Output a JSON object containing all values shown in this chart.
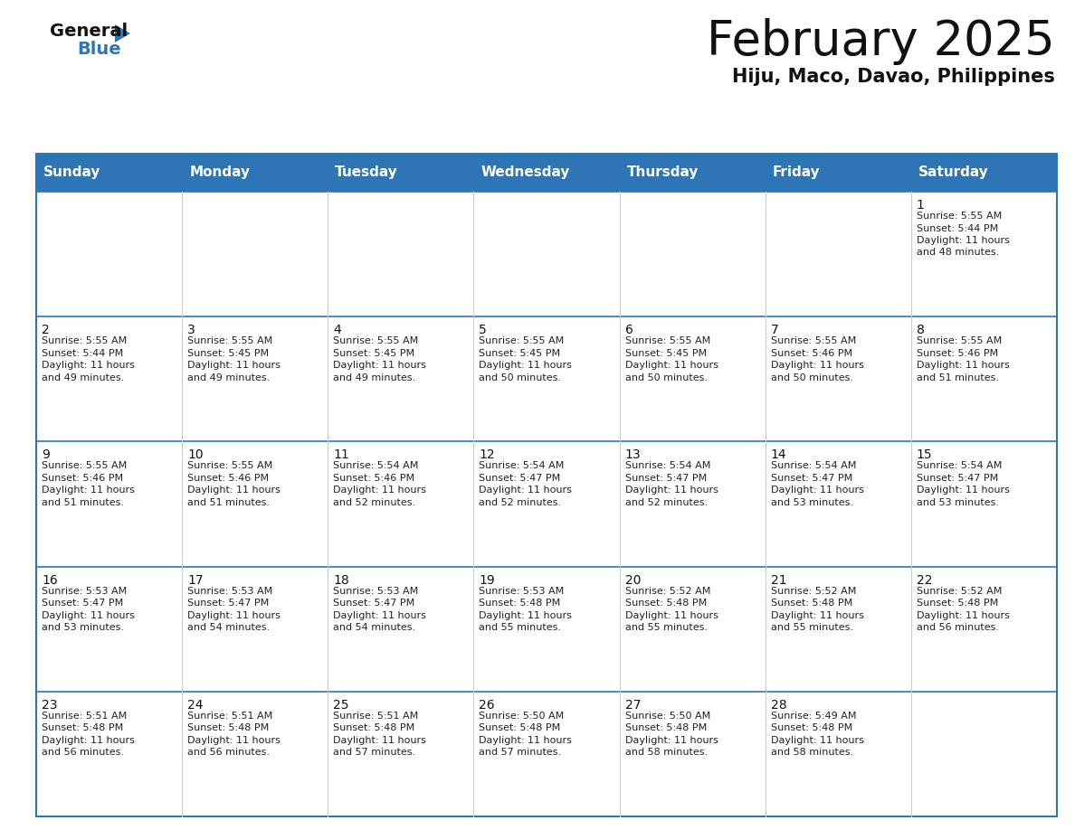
{
  "title": "February 2025",
  "subtitle": "Hiju, Maco, Davao, Philippines",
  "header_color": "#2E75B6",
  "header_text_color": "#FFFFFF",
  "border_color": "#2E75B6",
  "cell_bg_color": "#FFFFFF",
  "day_headers": [
    "Sunday",
    "Monday",
    "Tuesday",
    "Wednesday",
    "Thursday",
    "Friday",
    "Saturday"
  ],
  "days": [
    {
      "day": 1,
      "col": 6,
      "row": 0,
      "sunrise": "5:55 AM",
      "sunset": "5:44 PM",
      "daylight_hours": 11,
      "daylight_minutes": 48
    },
    {
      "day": 2,
      "col": 0,
      "row": 1,
      "sunrise": "5:55 AM",
      "sunset": "5:44 PM",
      "daylight_hours": 11,
      "daylight_minutes": 49
    },
    {
      "day": 3,
      "col": 1,
      "row": 1,
      "sunrise": "5:55 AM",
      "sunset": "5:45 PM",
      "daylight_hours": 11,
      "daylight_minutes": 49
    },
    {
      "day": 4,
      "col": 2,
      "row": 1,
      "sunrise": "5:55 AM",
      "sunset": "5:45 PM",
      "daylight_hours": 11,
      "daylight_minutes": 49
    },
    {
      "day": 5,
      "col": 3,
      "row": 1,
      "sunrise": "5:55 AM",
      "sunset": "5:45 PM",
      "daylight_hours": 11,
      "daylight_minutes": 50
    },
    {
      "day": 6,
      "col": 4,
      "row": 1,
      "sunrise": "5:55 AM",
      "sunset": "5:45 PM",
      "daylight_hours": 11,
      "daylight_minutes": 50
    },
    {
      "day": 7,
      "col": 5,
      "row": 1,
      "sunrise": "5:55 AM",
      "sunset": "5:46 PM",
      "daylight_hours": 11,
      "daylight_minutes": 50
    },
    {
      "day": 8,
      "col": 6,
      "row": 1,
      "sunrise": "5:55 AM",
      "sunset": "5:46 PM",
      "daylight_hours": 11,
      "daylight_minutes": 51
    },
    {
      "day": 9,
      "col": 0,
      "row": 2,
      "sunrise": "5:55 AM",
      "sunset": "5:46 PM",
      "daylight_hours": 11,
      "daylight_minutes": 51
    },
    {
      "day": 10,
      "col": 1,
      "row": 2,
      "sunrise": "5:55 AM",
      "sunset": "5:46 PM",
      "daylight_hours": 11,
      "daylight_minutes": 51
    },
    {
      "day": 11,
      "col": 2,
      "row": 2,
      "sunrise": "5:54 AM",
      "sunset": "5:46 PM",
      "daylight_hours": 11,
      "daylight_minutes": 52
    },
    {
      "day": 12,
      "col": 3,
      "row": 2,
      "sunrise": "5:54 AM",
      "sunset": "5:47 PM",
      "daylight_hours": 11,
      "daylight_minutes": 52
    },
    {
      "day": 13,
      "col": 4,
      "row": 2,
      "sunrise": "5:54 AM",
      "sunset": "5:47 PM",
      "daylight_hours": 11,
      "daylight_minutes": 52
    },
    {
      "day": 14,
      "col": 5,
      "row": 2,
      "sunrise": "5:54 AM",
      "sunset": "5:47 PM",
      "daylight_hours": 11,
      "daylight_minutes": 53
    },
    {
      "day": 15,
      "col": 6,
      "row": 2,
      "sunrise": "5:54 AM",
      "sunset": "5:47 PM",
      "daylight_hours": 11,
      "daylight_minutes": 53
    },
    {
      "day": 16,
      "col": 0,
      "row": 3,
      "sunrise": "5:53 AM",
      "sunset": "5:47 PM",
      "daylight_hours": 11,
      "daylight_minutes": 53
    },
    {
      "day": 17,
      "col": 1,
      "row": 3,
      "sunrise": "5:53 AM",
      "sunset": "5:47 PM",
      "daylight_hours": 11,
      "daylight_minutes": 54
    },
    {
      "day": 18,
      "col": 2,
      "row": 3,
      "sunrise": "5:53 AM",
      "sunset": "5:47 PM",
      "daylight_hours": 11,
      "daylight_minutes": 54
    },
    {
      "day": 19,
      "col": 3,
      "row": 3,
      "sunrise": "5:53 AM",
      "sunset": "5:48 PM",
      "daylight_hours": 11,
      "daylight_minutes": 55
    },
    {
      "day": 20,
      "col": 4,
      "row": 3,
      "sunrise": "5:52 AM",
      "sunset": "5:48 PM",
      "daylight_hours": 11,
      "daylight_minutes": 55
    },
    {
      "day": 21,
      "col": 5,
      "row": 3,
      "sunrise": "5:52 AM",
      "sunset": "5:48 PM",
      "daylight_hours": 11,
      "daylight_minutes": 55
    },
    {
      "day": 22,
      "col": 6,
      "row": 3,
      "sunrise": "5:52 AM",
      "sunset": "5:48 PM",
      "daylight_hours": 11,
      "daylight_minutes": 56
    },
    {
      "day": 23,
      "col": 0,
      "row": 4,
      "sunrise": "5:51 AM",
      "sunset": "5:48 PM",
      "daylight_hours": 11,
      "daylight_minutes": 56
    },
    {
      "day": 24,
      "col": 1,
      "row": 4,
      "sunrise": "5:51 AM",
      "sunset": "5:48 PM",
      "daylight_hours": 11,
      "daylight_minutes": 56
    },
    {
      "day": 25,
      "col": 2,
      "row": 4,
      "sunrise": "5:51 AM",
      "sunset": "5:48 PM",
      "daylight_hours": 11,
      "daylight_minutes": 57
    },
    {
      "day": 26,
      "col": 3,
      "row": 4,
      "sunrise": "5:50 AM",
      "sunset": "5:48 PM",
      "daylight_hours": 11,
      "daylight_minutes": 57
    },
    {
      "day": 27,
      "col": 4,
      "row": 4,
      "sunrise": "5:50 AM",
      "sunset": "5:48 PM",
      "daylight_hours": 11,
      "daylight_minutes": 58
    },
    {
      "day": 28,
      "col": 5,
      "row": 4,
      "sunrise": "5:49 AM",
      "sunset": "5:48 PM",
      "daylight_hours": 11,
      "daylight_minutes": 58
    }
  ],
  "num_rows": 5,
  "num_cols": 7,
  "logo_text_general": "General",
  "logo_text_blue": "Blue",
  "logo_triangle_color": "#2E75B6",
  "title_fontsize": 38,
  "subtitle_fontsize": 15,
  "header_fontsize": 11,
  "day_num_fontsize": 10,
  "cell_text_fontsize": 8
}
